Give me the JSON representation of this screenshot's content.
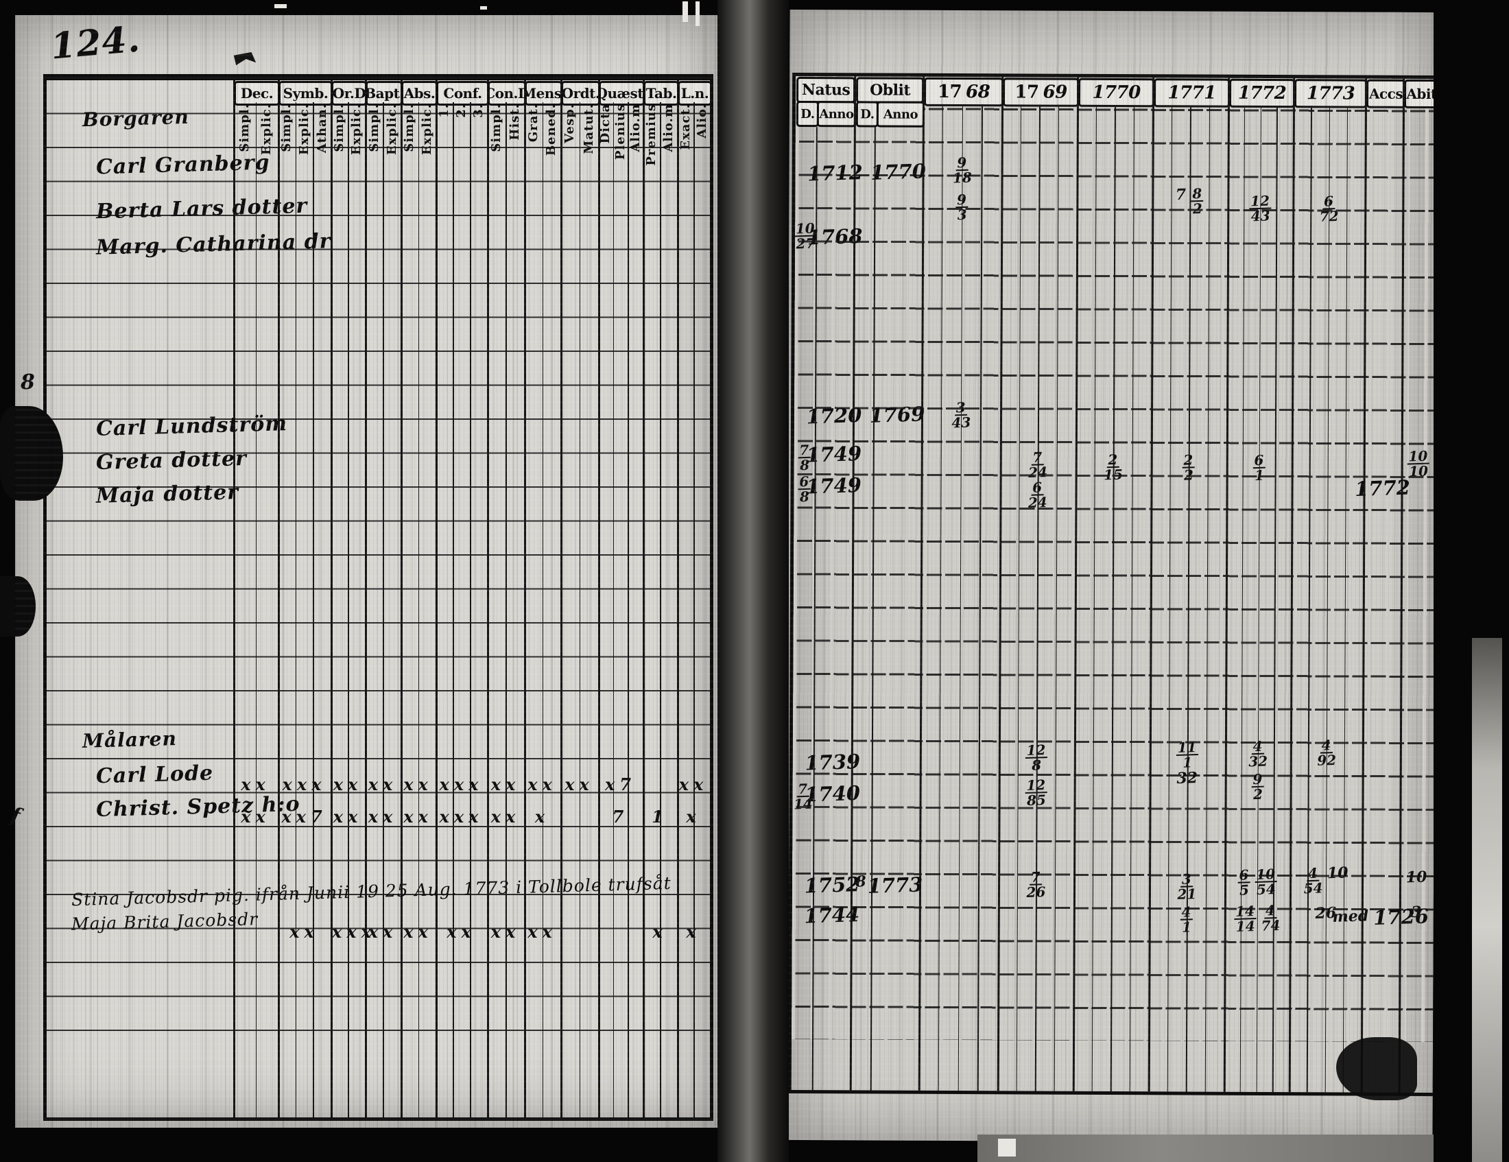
{
  "page": {
    "folio_number": "124.",
    "margin_marks": [
      "8",
      "f"
    ]
  },
  "left_page": {
    "column_groups": [
      {
        "label": "Dec.",
        "subs": [
          "Simpl.",
          "Explic."
        ]
      },
      {
        "label": "Symb.",
        "subs": [
          "Simpl.",
          "Explic.",
          "Athan."
        ]
      },
      {
        "label": "Or.D",
        "subs": [
          "Simpl.",
          "Explic."
        ]
      },
      {
        "label": "Bapt.",
        "subs": [
          "Simpl.",
          "Explic."
        ]
      },
      {
        "label": "Abs.",
        "subs": [
          "Simpl.",
          "Explic."
        ]
      },
      {
        "label": "Conf.",
        "subs": [
          "1.",
          "2.",
          "3."
        ]
      },
      {
        "label": "Con.D",
        "subs": [
          "Simpl.",
          "Hist."
        ]
      },
      {
        "label": "Mens.",
        "subs": [
          "Grat.",
          "Bened."
        ]
      },
      {
        "label": "Ordt.",
        "subs": [
          "Vesp.",
          "Matut."
        ]
      },
      {
        "label": "Quæst.",
        "subs": [
          "Dicta",
          "Plenius",
          "Alio.m"
        ]
      },
      {
        "label": "Tab.",
        "subs": [
          "Premius",
          "Alio.m"
        ]
      },
      {
        "label": "L.n.",
        "subs": [
          "Exact.",
          "Alio."
        ]
      }
    ],
    "entries": [
      {
        "row": -1.55,
        "text": "Borgaren",
        "kind": "heading"
      },
      {
        "row": -0.2,
        "text": "Carl Granberg",
        "kind": "name"
      },
      {
        "row": 1.1,
        "text": "Berta Lars dotter",
        "kind": "name"
      },
      {
        "row": 2.15,
        "text": "Marg. Catharina dr",
        "kind": "name"
      },
      {
        "row": 7.5,
        "text": "Carl Lundström",
        "kind": "name"
      },
      {
        "row": 8.5,
        "text": "Greta dotter",
        "kind": "name"
      },
      {
        "row": 9.5,
        "text": "Maja dotter",
        "kind": "name"
      },
      {
        "row": 16.75,
        "text": "Målaren",
        "kind": "heading"
      },
      {
        "row": 17.75,
        "text": "Carl Lode",
        "kind": "name"
      },
      {
        "row": 18.7,
        "text": "Christ. Spetz h:o",
        "kind": "name"
      },
      {
        "row": 21.25,
        "text": "Stina Jacobsdr pig. ifrån Junii 19 25 Aug. 1773 i Tollbole trufsåt",
        "kind": "note"
      },
      {
        "row": 22.15,
        "text": "Maja Brita Jacobsdr",
        "kind": "note"
      }
    ],
    "marks_rows": [
      {
        "row": 17.85,
        "cells": [
          "xx",
          "xxx",
          "xx",
          "xx",
          "xx",
          "xxx",
          "xx",
          "xx",
          "xx",
          "x7",
          "",
          "xx"
        ]
      },
      {
        "row": 18.8,
        "cells": [
          "xx",
          "xx7",
          "xx",
          "xx",
          "xx",
          "xxx",
          "xx",
          "x",
          "",
          "7",
          "1",
          "x"
        ]
      },
      {
        "row": 22.2,
        "cells": [
          "",
          "xx",
          "xxx",
          "xx",
          "xx",
          "xx",
          "xx",
          "xx",
          "",
          "",
          "x",
          "x"
        ]
      }
    ]
  },
  "right_page": {
    "natus_label": "Natus",
    "oblit_label": "Oblit",
    "d_label": "D.",
    "anno_label": "Anno",
    "years": [
      "17 68",
      "17 69",
      "1770",
      "1771",
      "1772",
      "1773"
    ],
    "accs_label": "Accs",
    "abit_label": "Abit",
    "entries": [
      {
        "row": 0.1,
        "col": "natus_anno",
        "text": "1712"
      },
      {
        "row": 0.05,
        "col": "oblit_anno",
        "text": "1770"
      },
      {
        "row": -0.15,
        "col": "y1768",
        "text": "9/18"
      },
      {
        "row": 0.95,
        "col": "y1768",
        "text": "9/3"
      },
      {
        "row": 0.75,
        "col": "y1771",
        "text": "7 8/2"
      },
      {
        "row": 0.95,
        "col": "y1772",
        "text": "12/43"
      },
      {
        "row": 0.95,
        "col": "y1773",
        "text": "6/72"
      },
      {
        "row": 1.85,
        "col": "natus_d",
        "text": "10/27"
      },
      {
        "row": 2.0,
        "col": "natus_anno",
        "text": "1768"
      },
      {
        "row": 7.4,
        "col": "natus_anno",
        "text": "1720"
      },
      {
        "row": 7.35,
        "col": "oblit_anno",
        "text": "1769"
      },
      {
        "row": 7.2,
        "col": "y1768",
        "text": "3/43"
      },
      {
        "row": 8.5,
        "col": "natus_d",
        "text": "7/8"
      },
      {
        "row": 8.55,
        "col": "natus_anno",
        "text": "1749"
      },
      {
        "row": 8.7,
        "col": "y1769",
        "text": "7/24"
      },
      {
        "row": 8.75,
        "col": "y1770",
        "text": "2/15"
      },
      {
        "row": 8.75,
        "col": "y1771",
        "text": "2/2"
      },
      {
        "row": 8.75,
        "col": "y1772",
        "text": "6/1"
      },
      {
        "row": 8.6,
        "col": "abit",
        "text": "10/10"
      },
      {
        "row": 9.45,
        "col": "natus_d",
        "text": "6/8"
      },
      {
        "row": 9.5,
        "col": "natus_anno",
        "text": "1749"
      },
      {
        "row": 9.6,
        "col": "y1769",
        "text": "6/24"
      },
      {
        "row": 9.5,
        "col": "accs",
        "text": "1772"
      },
      {
        "row": 17.8,
        "col": "natus_anno",
        "text": "1739"
      },
      {
        "row": 17.5,
        "col": "y1769",
        "text": "12/8"
      },
      {
        "row": 17.4,
        "col": "y1771",
        "text": "11/1"
      },
      {
        "row": 17.35,
        "col": "y1772",
        "text": "4/32"
      },
      {
        "row": 17.3,
        "col": "y1773",
        "text": "4/92"
      },
      {
        "row": 18.7,
        "col": "natus_d",
        "text": "7/14"
      },
      {
        "row": 18.75,
        "col": "natus_anno",
        "text": "1740"
      },
      {
        "row": 18.55,
        "col": "y1769",
        "text": "12/85"
      },
      {
        "row": 18.3,
        "col": "y1771",
        "text": "32"
      },
      {
        "row": 18.35,
        "col": "y1772",
        "text": "9/2"
      },
      {
        "row": 21.5,
        "col": "natus_anno",
        "text": "1752"
      },
      {
        "row": 21.45,
        "col": "oblit_d",
        "text": "8"
      },
      {
        "row": 21.5,
        "col": "oblit_anno",
        "text": "1773"
      },
      {
        "row": 21.3,
        "col": "y1769",
        "text": "7/26"
      },
      {
        "row": 21.35,
        "col": "y1771",
        "text": "3/21"
      },
      {
        "row": 21.2,
        "col": "y1772",
        "text": "6/5 10/54"
      },
      {
        "row": 21.15,
        "col": "y1773",
        "text": "4/54 10"
      },
      {
        "row": 21.25,
        "col": "abit",
        "text": "10"
      },
      {
        "row": 22.4,
        "col": "natus_anno",
        "text": "1744"
      },
      {
        "row": 22.35,
        "col": "y1771",
        "text": "4/1"
      },
      {
        "row": 22.3,
        "col": "y1772",
        "text": "14/14 4/74"
      },
      {
        "row": 22.35,
        "col": "y1773",
        "text": "26"
      },
      {
        "row": 22.4,
        "col": "accs",
        "text": "med 1726"
      },
      {
        "row": 22.3,
        "col": "abit",
        "text": "3"
      }
    ]
  }
}
